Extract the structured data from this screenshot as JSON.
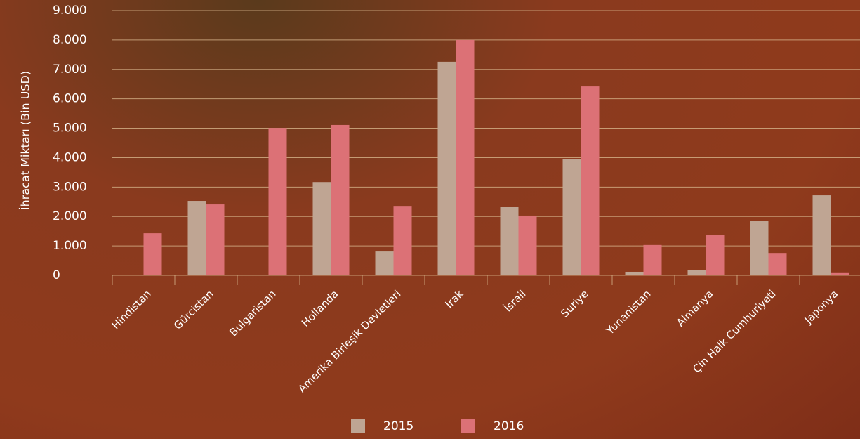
{
  "chart_data": {
    "type": "bar",
    "y_label": "İhracat Miktarı (Bin USD)",
    "categories": [
      "Hindistan",
      "Gürcistan",
      "Bulgaristan",
      "Hollanda",
      "Amerika Birleşik Devletleri",
      "Irak",
      "İsrail",
      "Suriye",
      "Yunanistan",
      "Almanya",
      "Çin Halk Cumhuriyeti",
      "Japonya"
    ],
    "series": [
      {
        "name": "2015",
        "color": "#bfa593",
        "values": [
          0,
          2530,
          0,
          3170,
          810,
          7260,
          2320,
          3960,
          120,
          190,
          1840,
          2720
        ]
      },
      {
        "name": "2016",
        "color": "#dc7176",
        "values": [
          1430,
          2410,
          5010,
          5110,
          2360,
          8000,
          2030,
          6420,
          1030,
          1380,
          760,
          100
        ]
      }
    ],
    "ylim": [
      0,
      9000
    ],
    "yticks": [
      {
        "value": 0,
        "label": "0"
      },
      {
        "value": 1000,
        "label": "1.000"
      },
      {
        "value": 2000,
        "label": "2.000"
      },
      {
        "value": 3000,
        "label": "3.000"
      },
      {
        "value": 4000,
        "label": "4.000"
      },
      {
        "value": 5000,
        "label": "5.000"
      },
      {
        "value": 6000,
        "label": "6.000"
      },
      {
        "value": 7000,
        "label": "7.000"
      },
      {
        "value": 8000,
        "label": "8.000"
      },
      {
        "value": 9000,
        "label": "9.000"
      }
    ],
    "grid": true,
    "legend": "bottom"
  }
}
